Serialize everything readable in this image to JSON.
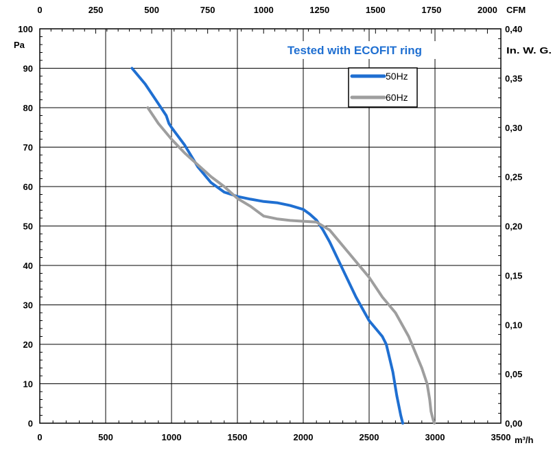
{
  "chart_data": {
    "type": "line",
    "annotation": "Tested with ECOFIT ring",
    "axes": {
      "bottom": {
        "unit_label": "m³/h",
        "range": [
          0,
          3500
        ],
        "ticks": [
          "0",
          "500",
          "1000",
          "1500",
          "2000",
          "2500",
          "3000",
          "3500"
        ]
      },
      "top": {
        "unit_label": "CFM",
        "range": [
          0,
          2060
        ],
        "ticks": [
          "0",
          "250",
          "500",
          "750",
          "1000",
          "1250",
          "1500",
          "1750",
          "2000"
        ]
      },
      "left": {
        "unit_label": "Pa",
        "range": [
          0,
          100
        ],
        "ticks": [
          "0",
          "10",
          "20",
          "30",
          "40",
          "50",
          "60",
          "70",
          "80",
          "90",
          "100"
        ]
      },
      "right": {
        "unit_label": "In. W. G.",
        "range": [
          0,
          0.4
        ],
        "ticks": [
          "0,00",
          "0,05",
          "0,10",
          "0,15",
          "0,20",
          "0,25",
          "0,30",
          "0,35",
          "0,40"
        ]
      }
    },
    "grid": true,
    "legend_position": "top-right",
    "series": [
      {
        "name": "50Hz",
        "color": "#1f6fd1",
        "x": [
          700,
          800,
          900,
          960,
          980,
          1000,
          1100,
          1200,
          1300,
          1400,
          1500,
          1600,
          1700,
          1800,
          1900,
          2000,
          2050,
          2100,
          2150,
          2200,
          2300,
          2400,
          2500,
          2600,
          2630,
          2680,
          2710,
          2740,
          2755
        ],
        "y": [
          90,
          86,
          81,
          78,
          76,
          75,
          70.5,
          65,
          61,
          58.6,
          57.5,
          56.8,
          56.2,
          55.9,
          55.2,
          54.2,
          53,
          51.5,
          49,
          46,
          39,
          32,
          26,
          22,
          20,
          13,
          7,
          2,
          0
        ]
      },
      {
        "name": "60Hz",
        "color": "#9e9e9e",
        "x": [
          820,
          900,
          1000,
          1100,
          1200,
          1300,
          1400,
          1500,
          1600,
          1700,
          1800,
          1900,
          2000,
          2100,
          2200,
          2300,
          2400,
          2500,
          2600,
          2700,
          2800,
          2900,
          2940,
          2960,
          2970,
          2985,
          2995
        ],
        "y": [
          80,
          76,
          72,
          68.5,
          65.5,
          62.5,
          60,
          57,
          55,
          52.5,
          51.8,
          51.4,
          51.2,
          51,
          49,
          45,
          41,
          37,
          32,
          28,
          22,
          14,
          10,
          6,
          3,
          1,
          0
        ]
      }
    ]
  }
}
